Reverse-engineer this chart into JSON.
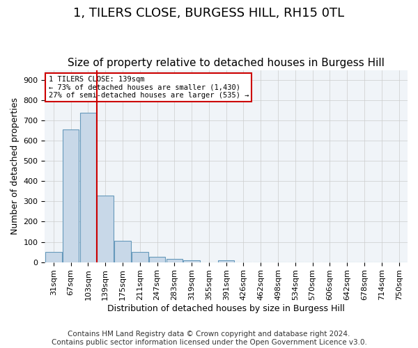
{
  "title": "1, TILERS CLOSE, BURGESS HILL, RH15 0TL",
  "subtitle": "Size of property relative to detached houses in Burgess Hill",
  "xlabel": "Distribution of detached houses by size in Burgess Hill",
  "ylabel": "Number of detached properties",
  "bar_labels": [
    "31sqm",
    "67sqm",
    "103sqm",
    "139sqm",
    "175sqm",
    "211sqm",
    "247sqm",
    "283sqm",
    "319sqm",
    "355sqm",
    "391sqm",
    "426sqm",
    "462sqm",
    "498sqm",
    "534sqm",
    "570sqm",
    "606sqm",
    "642sqm",
    "678sqm",
    "714sqm",
    "750sqm"
  ],
  "bar_values": [
    50,
    657,
    740,
    330,
    106,
    50,
    25,
    15,
    10,
    0,
    8,
    0,
    0,
    0,
    0,
    0,
    0,
    0,
    0,
    0,
    0
  ],
  "bar_color": "#c8d8e8",
  "bar_edge_color": "#6699bb",
  "property_line_x": 3,
  "property_line_label": "1 TILERS CLOSE: 139sqm",
  "annotation_line1": "← 73% of detached houses are smaller (1,430)",
  "annotation_line2": "27% of semi-detached houses are larger (535) →",
  "annotation_box_color": "#ffffff",
  "annotation_box_edge": "#cc0000",
  "vline_color": "#cc0000",
  "ylim": [
    0,
    950
  ],
  "yticks": [
    0,
    100,
    200,
    300,
    400,
    500,
    600,
    700,
    800,
    900
  ],
  "footer_line1": "Contains HM Land Registry data © Crown copyright and database right 2024.",
  "footer_line2": "Contains public sector information licensed under the Open Government Licence v3.0.",
  "background_color": "#f0f4f8",
  "grid_color": "#cccccc",
  "title_fontsize": 13,
  "subtitle_fontsize": 11,
  "axis_label_fontsize": 9,
  "tick_fontsize": 8,
  "footer_fontsize": 7.5
}
